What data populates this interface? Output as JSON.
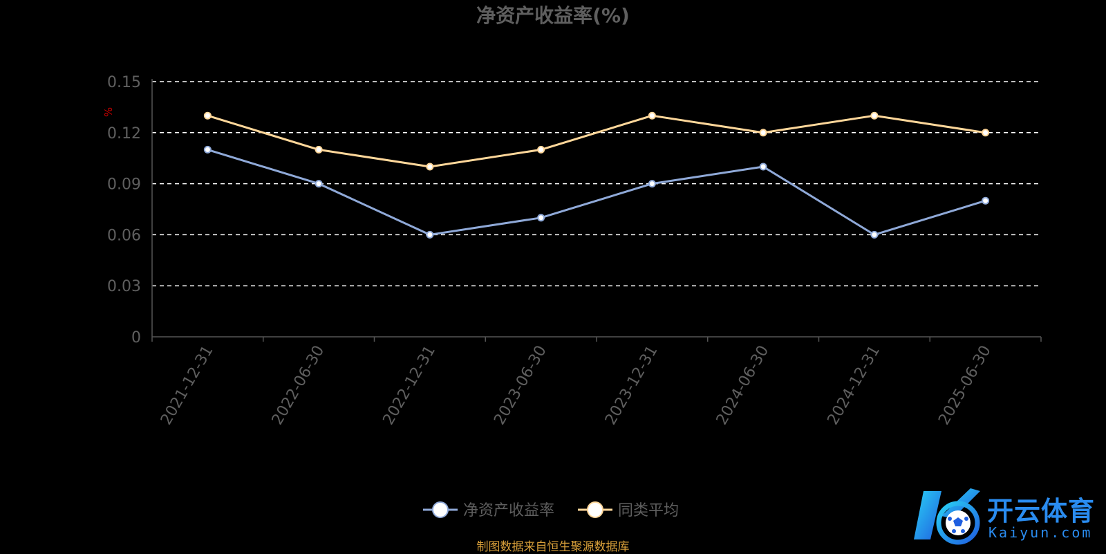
{
  "colors": {
    "background": "#000000",
    "series_main": "#8fa9d8",
    "series_avg": "#ffd79a",
    "grid": "#ffffff",
    "axis": "#555555",
    "axis_text": "#5f5f5f",
    "unit_label": "#cc0000",
    "source_text": "#d9a03a",
    "logo": "#2a8cf0"
  },
  "watermark": {
    "brand_cn": "开云体育",
    "brand_en": "Kaiyun.com",
    "icon": "kaiyun-soccer-ball-logo"
  },
  "source_note": "制图数据来自恒生聚源数据库",
  "chart_data": {
    "type": "line",
    "title": "净资产收益率(%)",
    "ylabel": "%",
    "xlabel": "",
    "categories": [
      "2021-12-31",
      "2022-06-30",
      "2022-12-31",
      "2023-06-30",
      "2023-12-31",
      "2024-06-30",
      "2024-12-31",
      "2025-06-30"
    ],
    "series": [
      {
        "name": "净资产收益率",
        "values": [
          0.11,
          0.09,
          0.06,
          0.07,
          0.09,
          0.1,
          0.06,
          0.08
        ]
      },
      {
        "name": "同类平均",
        "values": [
          0.13,
          0.11,
          0.1,
          0.11,
          0.13,
          0.12,
          0.13,
          0.12
        ]
      }
    ],
    "ylim": [
      0,
      0.15
    ],
    "yticks": [
      "0",
      "0.03",
      "0.06",
      "0.09",
      "0.12",
      "0.15"
    ],
    "grid": true,
    "legend_position": "bottom-center"
  }
}
